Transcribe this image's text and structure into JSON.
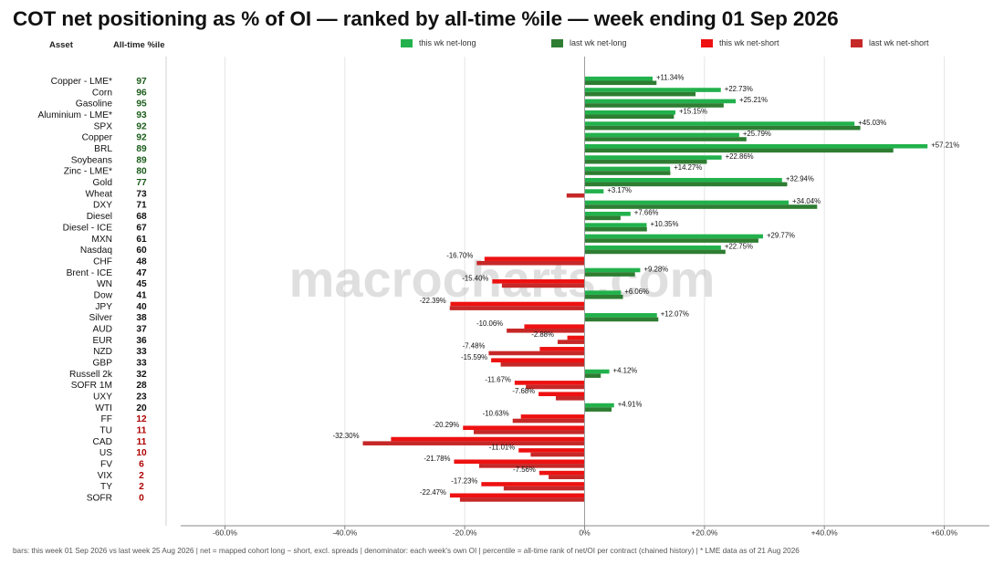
{
  "title": "COT net positioning as % of OI — ranked by all-time %ile — week ending 01 Sep 2026",
  "columns": {
    "asset": "Asset",
    "percentile": "All-time %ile"
  },
  "watermark": "macrocharts.com",
  "footer": "bars: this week 01 Sep 2026 vs last week 25 Aug 2026   |   net = mapped cohort long − short, excl. spreads   |   denominator: each week's own OI   |   percentile = all-time rank of net/OI per contract (chained history)   |   * LME data as of 21 Aug 2026",
  "colors": {
    "this_long": "#22b14c",
    "last_long": "#2e7d32",
    "this_short": "#ee1111",
    "last_short": "#c62828",
    "pct_high": "#1a5c1a",
    "pct_mid": "#111111",
    "pct_low": "#b00000"
  },
  "chart_data": {
    "type": "bar",
    "orientation": "horizontal",
    "title": "COT net positioning as % of OI — ranked by all-time %ile — week ending 01 Sep 2026",
    "xlim": [
      -70,
      68
    ],
    "xticks": [
      -60,
      -40,
      -20,
      0,
      20,
      40,
      60
    ],
    "xtick_labels": [
      "-60.0%",
      "-40.0%",
      "-20.0%",
      "0%",
      "+20.0%",
      "+40.0%",
      "+60.0%"
    ],
    "grid": true,
    "legend_position": "top",
    "legend": [
      "this wk net-long",
      "last wk net-long",
      "this wk net-short",
      "last wk net-short"
    ],
    "categories": [
      "Copper - LME*",
      "Corn",
      "Gasoline",
      "Aluminium - LME*",
      "SPX",
      "Copper",
      "BRL",
      "Soybeans",
      "Zinc - LME*",
      "Gold",
      "Wheat",
      "DXY",
      "Diesel",
      "Diesel - ICE",
      "MXN",
      "Nasdaq",
      "CHF",
      "Brent - ICE",
      "WN",
      "Dow",
      "JPY",
      "Silver",
      "AUD",
      "EUR",
      "NZD",
      "GBP",
      "Russell 2k",
      "SOFR 1M",
      "UXY",
      "WTI",
      "FF",
      "TU",
      "CAD",
      "US",
      "FV",
      "VIX",
      "TY",
      "SOFR"
    ],
    "percentiles": [
      97,
      96,
      95,
      93,
      92,
      92,
      89,
      89,
      80,
      77,
      73,
      71,
      68,
      67,
      61,
      60,
      48,
      47,
      45,
      41,
      40,
      38,
      37,
      36,
      33,
      33,
      32,
      28,
      23,
      20,
      12,
      11,
      11,
      10,
      6,
      2,
      2,
      0
    ],
    "series": [
      {
        "name": "this wk",
        "values": [
          11.34,
          22.73,
          25.21,
          15.15,
          45.03,
          25.79,
          57.21,
          22.86,
          14.27,
          32.94,
          3.17,
          34.04,
          7.66,
          10.35,
          29.77,
          22.75,
          -16.7,
          9.28,
          -15.4,
          6.06,
          -22.39,
          12.07,
          -10.06,
          -2.88,
          -7.48,
          -15.59,
          4.12,
          -11.67,
          -7.68,
          4.91,
          -10.63,
          -20.29,
          -32.3,
          -11.01,
          -21.78,
          -7.56,
          -17.23,
          -22.47
        ]
      },
      {
        "name": "last wk",
        "values": [
          12.0,
          18.5,
          23.2,
          14.9,
          46.0,
          27.0,
          51.5,
          20.4,
          14.3,
          33.8,
          -3.0,
          38.8,
          6.0,
          10.4,
          29.0,
          23.5,
          -18.0,
          8.4,
          -13.8,
          6.4,
          -22.5,
          12.3,
          -13.0,
          -4.5,
          -16.0,
          -14.0,
          2.7,
          -9.8,
          -4.8,
          4.5,
          -12.0,
          -18.5,
          -37.0,
          -9.0,
          -17.6,
          -6.0,
          -13.5,
          -20.8
        ]
      }
    ],
    "value_labels": [
      "+11.34%",
      "+22.73%",
      "+25.21%",
      "+15.15%",
      "+45.03%",
      "+25.79%",
      "+57.21%",
      "+22.86%",
      "+14.27%",
      "+32.94%",
      "+3.17%",
      "+34.04%",
      "+7.66%",
      "+10.35%",
      "+29.77%",
      "+22.75%",
      "-16.70%",
      "+9.28%",
      "-15.40%",
      "+6.06%",
      "-22.39%",
      "+12.07%",
      "-10.06%",
      "-2.88%",
      "-7.48%",
      "-15.59%",
      "+4.12%",
      "-11.67%",
      "-7.68%",
      "+4.91%",
      "-10.63%",
      "-20.29%",
      "-32.30%",
      "-11.01%",
      "-21.78%",
      "-7.56%",
      "-17.23%",
      "-22.47%"
    ]
  }
}
